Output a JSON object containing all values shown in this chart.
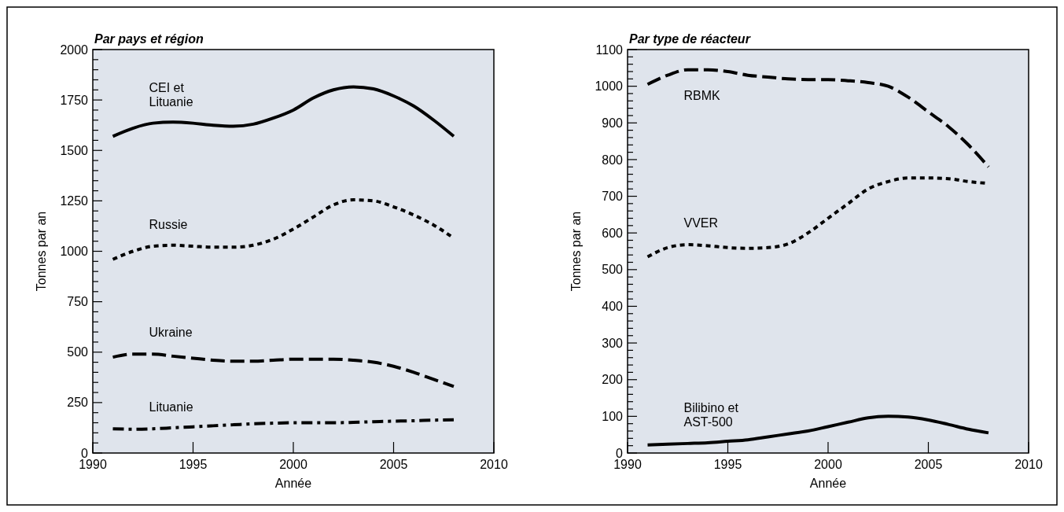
{
  "chart_data": [
    {
      "type": "line",
      "title": "Par pays et région",
      "xlabel": "Année",
      "ylabel": "Tonnes par an",
      "xlim": [
        1990,
        2010
      ],
      "xticks": [
        1990,
        1995,
        2000,
        2005,
        2010
      ],
      "ylim": [
        0,
        2000
      ],
      "yticks": [
        0,
        {
          "value": 50,
          "label": null
        },
        {
          "value": 100,
          "label": null
        },
        {
          "value": 150,
          "label": null
        },
        {
          "value": 200,
          "label": null
        },
        250,
        {
          "value": 300,
          "label": null
        },
        {
          "value": 350,
          "label": null
        },
        {
          "value": 400,
          "label": null
        },
        {
          "value": 450,
          "label": null
        },
        500,
        {
          "value": 550,
          "label": null
        },
        {
          "value": 600,
          "label": null
        },
        {
          "value": 650,
          "label": null
        },
        {
          "value": 700,
          "label": null
        },
        750,
        {
          "value": 800,
          "label": null
        },
        {
          "value": 850,
          "label": null
        },
        {
          "value": 900,
          "label": null
        },
        {
          "value": 950,
          "label": null
        },
        1000,
        {
          "value": 1050,
          "label": null
        },
        {
          "value": 1100,
          "label": null
        },
        {
          "value": 1150,
          "label": null
        },
        {
          "value": 1200,
          "label": null
        },
        1250,
        {
          "value": 1300,
          "label": null
        },
        {
          "value": 1350,
          "label": null
        },
        {
          "value": 1400,
          "label": null
        },
        {
          "value": 1450,
          "label": null
        },
        1500,
        {
          "value": 1550,
          "label": null
        },
        {
          "value": 1600,
          "label": null
        },
        {
          "value": 1650,
          "label": null
        },
        {
          "value": 1700,
          "label": null
        },
        1750,
        {
          "value": 1800,
          "label": null
        },
        {
          "value": 1850,
          "label": null
        },
        {
          "value": 1900,
          "label": null
        },
        {
          "value": 1950,
          "label": null
        },
        2000
      ],
      "x": [
        1991,
        1992,
        1993,
        1994,
        1995,
        1996,
        1997,
        1998,
        1999,
        2000,
        2001,
        2002,
        2003,
        2004,
        2005,
        2006,
        2007,
        2008
      ],
      "series": [
        {
          "name": "CEI et\nLituanie",
          "color": "#000000",
          "line_style": "solid",
          "values": [
            1570,
            1610,
            1635,
            1640,
            1635,
            1625,
            1620,
            1630,
            1660,
            1700,
            1760,
            1800,
            1815,
            1805,
            1770,
            1720,
            1650,
            1570
          ]
        },
        {
          "name": "Russie",
          "color": "#000000",
          "line_style": "dotted",
          "values": [
            960,
            1000,
            1025,
            1030,
            1025,
            1020,
            1020,
            1030,
            1060,
            1110,
            1170,
            1230,
            1255,
            1250,
            1220,
            1180,
            1130,
            1065
          ]
        },
        {
          "name": "Ukraine",
          "color": "#000000",
          "line_style": "dashed",
          "values": [
            475,
            490,
            490,
            480,
            470,
            460,
            455,
            455,
            460,
            465,
            465,
            465,
            460,
            450,
            430,
            400,
            365,
            330
          ]
        },
        {
          "name": "Lituanie",
          "color": "#000000",
          "line_style": "dashdot",
          "values": [
            120,
            118,
            120,
            125,
            130,
            135,
            140,
            145,
            148,
            150,
            150,
            150,
            152,
            155,
            158,
            160,
            163,
            165
          ]
        }
      ]
    },
    {
      "type": "line",
      "title": "Par type de réacteur",
      "xlabel": "Année",
      "ylabel": "Tonnes par an",
      "xlim": [
        1990,
        2010
      ],
      "xticks": [
        1990,
        1995,
        2000,
        2005,
        2010
      ],
      "ylim": [
        0,
        1100
      ],
      "yticks": [
        0,
        {
          "value": 20,
          "label": null
        },
        {
          "value": 40,
          "label": null
        },
        {
          "value": 60,
          "label": null
        },
        {
          "value": 80,
          "label": null
        },
        100,
        {
          "value": 120,
          "label": null
        },
        {
          "value": 140,
          "label": null
        },
        {
          "value": 160,
          "label": null
        },
        {
          "value": 180,
          "label": null
        },
        200,
        {
          "value": 220,
          "label": null
        },
        {
          "value": 240,
          "label": null
        },
        {
          "value": 260,
          "label": null
        },
        {
          "value": 280,
          "label": null
        },
        300,
        {
          "value": 320,
          "label": null
        },
        {
          "value": 340,
          "label": null
        },
        {
          "value": 360,
          "label": null
        },
        {
          "value": 380,
          "label": null
        },
        400,
        {
          "value": 420,
          "label": null
        },
        {
          "value": 440,
          "label": null
        },
        {
          "value": 460,
          "label": null
        },
        {
          "value": 480,
          "label": null
        },
        500,
        {
          "value": 520,
          "label": null
        },
        {
          "value": 540,
          "label": null
        },
        {
          "value": 560,
          "label": null
        },
        {
          "value": 580,
          "label": null
        },
        600,
        {
          "value": 620,
          "label": null
        },
        {
          "value": 640,
          "label": null
        },
        {
          "value": 660,
          "label": null
        },
        {
          "value": 680,
          "label": null
        },
        700,
        {
          "value": 720,
          "label": null
        },
        {
          "value": 740,
          "label": null
        },
        {
          "value": 760,
          "label": null
        },
        {
          "value": 780,
          "label": null
        },
        800,
        {
          "value": 820,
          "label": null
        },
        {
          "value": 840,
          "label": null
        },
        {
          "value": 860,
          "label": null
        },
        {
          "value": 880,
          "label": null
        },
        900,
        {
          "value": 920,
          "label": null
        },
        {
          "value": 940,
          "label": null
        },
        {
          "value": 960,
          "label": null
        },
        {
          "value": 980,
          "label": null
        },
        1000,
        {
          "value": 1020,
          "label": null
        },
        {
          "value": 1040,
          "label": null
        },
        {
          "value": 1060,
          "label": null
        },
        {
          "value": 1080,
          "label": null
        },
        1100
      ],
      "x": [
        1991,
        1992,
        1993,
        1994,
        1995,
        1996,
        1997,
        1998,
        1999,
        2000,
        2001,
        2002,
        2003,
        2004,
        2005,
        2006,
        2007,
        2008
      ],
      "series": [
        {
          "name": "RBMK",
          "color": "#000000",
          "line_style": "dashed",
          "values": [
            1005,
            1030,
            1045,
            1045,
            1040,
            1030,
            1025,
            1020,
            1018,
            1018,
            1015,
            1010,
            1000,
            970,
            930,
            890,
            840,
            780
          ]
        },
        {
          "name": "VVER",
          "color": "#000000",
          "line_style": "dotted",
          "values": [
            535,
            560,
            568,
            565,
            560,
            558,
            560,
            570,
            600,
            640,
            680,
            720,
            740,
            750,
            750,
            748,
            740,
            735
          ]
        },
        {
          "name": "Bilibino et\nAST-500",
          "color": "#000000",
          "line_style": "solid",
          "values": [
            22,
            24,
            26,
            28,
            32,
            36,
            44,
            52,
            60,
            72,
            84,
            96,
            100,
            98,
            90,
            78,
            65,
            55
          ]
        }
      ]
    }
  ]
}
